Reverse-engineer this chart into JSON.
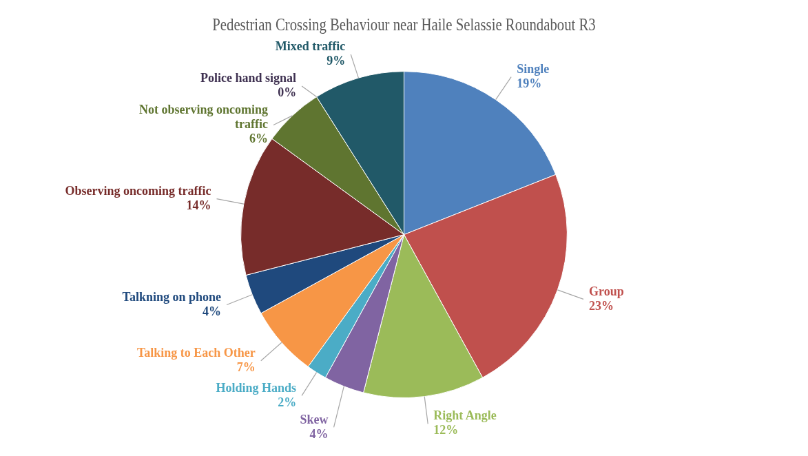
{
  "chart_data": {
    "type": "pie",
    "title": "Pedestrian Crossing Behaviour near Haile Selassie Roundabout R3",
    "categories": [
      "Single",
      "Group",
      "Right Angle",
      "Skew",
      "Holding Hands",
      "Talking to Each Other",
      "Talkning on phone",
      "Observing oncoming traffic",
      "Not observing oncoming traffic",
      "Police hand signal",
      "Mixed traffic"
    ],
    "values": [
      19,
      23,
      12,
      4,
      2,
      7,
      4,
      14,
      6,
      0,
      9
    ],
    "colors": [
      "#4f81bd",
      "#c0504d",
      "#9bbb59",
      "#8064a2",
      "#4bacc6",
      "#f79646",
      "#1f497d",
      "#772c2a",
      "#5f7530",
      "#3f3151",
      "#215968"
    ],
    "value_labels": [
      "19%",
      "23%",
      "12%",
      "4%",
      "2%",
      "7%",
      "4%",
      "14%",
      "6%",
      "0%",
      "9%"
    ],
    "legend": false
  }
}
